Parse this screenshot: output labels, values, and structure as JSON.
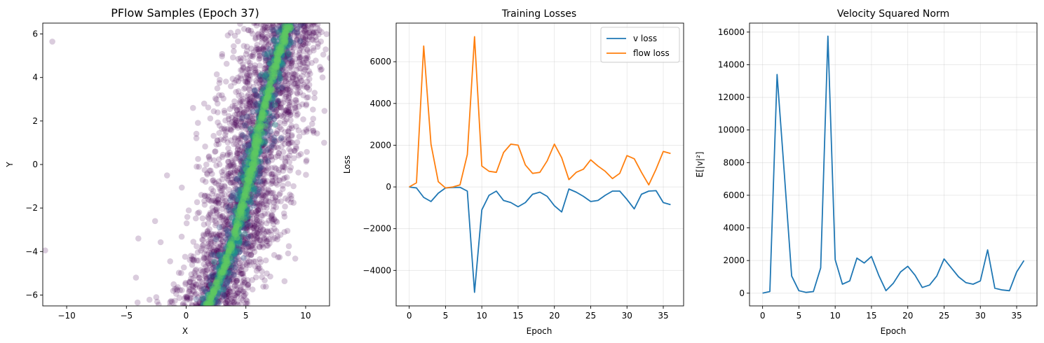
{
  "chart_data": [
    {
      "type": "scatter",
      "title": "PFlow Samples (Epoch 37)",
      "xlabel": "X",
      "ylabel": "Y",
      "xlim": [
        -12,
        12
      ],
      "ylim": [
        -6.5,
        6.5
      ],
      "xticks": [
        -10,
        -5,
        0,
        5,
        10
      ],
      "xtick_labels": [
        "−10",
        "−5",
        "0",
        "5",
        "10"
      ],
      "yticks": [
        -6,
        -4,
        -2,
        0,
        2,
        4,
        6
      ],
      "ytick_labels": [
        "−6",
        "−4",
        "−2",
        "0",
        "2",
        "4",
        "6"
      ],
      "grid": false,
      "point_color": "#440154",
      "density_colors": [
        "#3b528b",
        "#21918c",
        "#5ec962"
      ],
      "outliers": [
        [
          -11.2,
          5.65
        ],
        [
          -11.8,
          -3.95
        ],
        [
          -4.0,
          -3.4
        ],
        [
          -4.2,
          -5.2
        ],
        [
          -2.6,
          -2.6
        ],
        [
          -1.6,
          -0.5
        ],
        [
          -2.5,
          -6.1
        ]
      ],
      "ridge": [
        [
          1.8,
          -6.5
        ],
        [
          3.0,
          -5.0
        ],
        [
          4.0,
          -3.5
        ],
        [
          4.6,
          -2.0
        ],
        [
          5.3,
          -0.5
        ],
        [
          5.9,
          1.0
        ],
        [
          6.5,
          2.5
        ],
        [
          7.2,
          4.0
        ],
        [
          8.0,
          5.5
        ],
        [
          8.6,
          6.5
        ]
      ],
      "spread_sigma": 1.8
    },
    {
      "type": "line",
      "title": "Training Losses",
      "xlabel": "Epoch",
      "ylabel": "Loss",
      "xlim": [
        -1.8,
        37.8
      ],
      "ylim": [
        -5700,
        7850
      ],
      "xticks": [
        0,
        5,
        10,
        15,
        20,
        25,
        30,
        35
      ],
      "xtick_labels": [
        "0",
        "5",
        "10",
        "15",
        "20",
        "25",
        "30",
        "35"
      ],
      "yticks": [
        -4000,
        -2000,
        0,
        2000,
        4000,
        6000
      ],
      "ytick_labels": [
        "−4000",
        "−2000",
        "0",
        "2000",
        "4000",
        "6000"
      ],
      "grid": true,
      "legend_position": "upper right",
      "x": [
        0,
        1,
        2,
        3,
        4,
        5,
        6,
        7,
        8,
        9,
        10,
        11,
        12,
        13,
        14,
        15,
        16,
        17,
        18,
        19,
        20,
        21,
        22,
        23,
        24,
        25,
        26,
        27,
        28,
        29,
        30,
        31,
        32,
        33,
        34,
        35,
        36
      ],
      "series": [
        {
          "name": "v loss",
          "color": "#1f77b4",
          "values": [
            0,
            -50,
            -500,
            -700,
            -300,
            -50,
            -30,
            -20,
            -200,
            -5050,
            -1100,
            -400,
            -200,
            -650,
            -750,
            -950,
            -750,
            -350,
            -250,
            -450,
            -900,
            -1200,
            -100,
            -250,
            -450,
            -700,
            -650,
            -400,
            -200,
            -200,
            -600,
            -1050,
            -350,
            -200,
            -180,
            -750,
            -850
          ]
        },
        {
          "name": "flow loss",
          "color": "#ff7f0e",
          "values": [
            0,
            200,
            6750,
            2050,
            250,
            -50,
            0,
            100,
            1550,
            7200,
            1000,
            750,
            700,
            1650,
            2050,
            2000,
            1050,
            650,
            700,
            1250,
            2050,
            1400,
            350,
            700,
            850,
            1300,
            1000,
            750,
            400,
            650,
            1500,
            1350,
            700,
            100,
            850,
            1700,
            1600
          ]
        }
      ]
    },
    {
      "type": "line",
      "title": "Velocity Squared Norm",
      "xlabel": "Epoch",
      "ylabel": "E[|v|²]",
      "xlim": [
        -1.8,
        37.8
      ],
      "ylim": [
        -780,
        16550
      ],
      "xticks": [
        0,
        5,
        10,
        15,
        20,
        25,
        30,
        35
      ],
      "xtick_labels": [
        "0",
        "5",
        "10",
        "15",
        "20",
        "25",
        "30",
        "35"
      ],
      "yticks": [
        0,
        2000,
        4000,
        6000,
        8000,
        10000,
        12000,
        14000,
        16000
      ],
      "ytick_labels": [
        "0",
        "2000",
        "4000",
        "6000",
        "8000",
        "10000",
        "12000",
        "14000",
        "16000"
      ],
      "grid": true,
      "x": [
        0,
        1,
        2,
        3,
        4,
        5,
        6,
        7,
        8,
        9,
        10,
        11,
        12,
        13,
        14,
        15,
        16,
        17,
        18,
        19,
        20,
        21,
        22,
        23,
        24,
        25,
        26,
        27,
        28,
        29,
        30,
        31,
        32,
        33,
        34,
        35,
        36
      ],
      "series": [
        {
          "color": "#1f77b4",
          "values": [
            0,
            100,
            13400,
            7300,
            1050,
            150,
            50,
            100,
            1550,
            15750,
            2050,
            550,
            750,
            2150,
            1850,
            2250,
            1100,
            150,
            600,
            1300,
            1650,
            1100,
            350,
            500,
            1050,
            2100,
            1550,
            1000,
            650,
            550,
            750,
            2650,
            300,
            200,
            150,
            1300,
            2000
          ]
        }
      ]
    }
  ]
}
